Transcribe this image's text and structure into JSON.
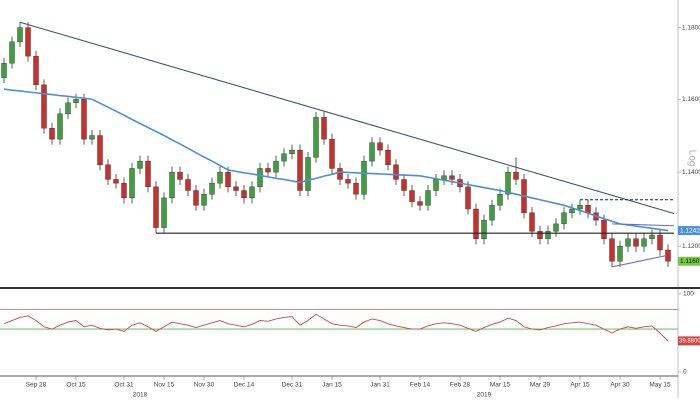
{
  "chart_data": {
    "type": "candlestick",
    "y_scale_label": "Log",
    "log_scale": true,
    "categories": [
      null,
      null,
      null,
      null,
      "Sep 28",
      null,
      null,
      null,
      null,
      "Oct 15",
      null,
      null,
      null,
      null,
      null,
      "Oct 31",
      null,
      null,
      null,
      null,
      "Nov 15",
      null,
      null,
      null,
      null,
      "Nov 30",
      null,
      null,
      null,
      null,
      "Dec 14",
      null,
      null,
      null,
      null,
      null,
      "Dec 31",
      null,
      null,
      null,
      null,
      "Jan 15",
      null,
      null,
      null,
      null,
      null,
      "Jan 31",
      null,
      null,
      null,
      null,
      "Feb 14",
      null,
      null,
      null,
      null,
      "Feb 28",
      null,
      null,
      null,
      null,
      "Mar 15",
      null,
      null,
      null,
      null,
      "Mar 29",
      null,
      null,
      null,
      null,
      "Apr 15",
      null,
      null,
      null,
      null,
      "Apr 30",
      null,
      null,
      null,
      null,
      "May 15",
      null
    ],
    "year_labels": [
      {
        "label": "2018",
        "at": 17
      },
      {
        "label": "2019",
        "at": 60
      }
    ],
    "ylim": [
      1.1089,
      1.1878
    ],
    "yticks": [
      {
        "value": 1.18,
        "label": "1.1800"
      },
      {
        "value": 1.16,
        "label": "1.1600"
      },
      {
        "value": 1.14,
        "label": "1.1400"
      },
      {
        "value": 1.12,
        "label": "1.1200"
      }
    ],
    "up_color": "#3f9e3f",
    "down_color": "#c9302c",
    "candles": {
      "open": [
        1.166,
        1.17,
        1.176,
        1.18,
        1.172,
        1.164,
        1.152,
        1.149,
        1.156,
        1.159,
        1.16,
        1.149,
        1.15,
        1.142,
        1.138,
        1.137,
        1.133,
        1.141,
        1.143,
        1.136,
        1.125,
        1.133,
        1.14,
        1.138,
        1.135,
        1.131,
        1.134,
        1.137,
        1.14,
        1.136,
        1.135,
        1.133,
        1.136,
        1.141,
        1.14,
        1.143,
        1.145,
        1.146,
        1.135,
        1.144,
        1.155,
        1.149,
        1.141,
        1.138,
        1.137,
        1.134,
        1.143,
        1.148,
        1.146,
        1.142,
        1.138,
        1.135,
        1.132,
        1.131,
        1.135,
        1.138,
        1.139,
        1.138,
        1.136,
        1.13,
        1.122,
        1.127,
        1.131,
        1.134,
        1.14,
        1.138,
        1.129,
        1.124,
        1.122,
        1.124,
        1.126,
        1.129,
        1.13,
        1.131,
        1.129,
        1.127,
        1.122,
        1.116,
        1.12,
        1.122,
        1.12,
        1.122,
        1.123,
        1.119
      ],
      "high": [
        1.1715,
        1.1775,
        1.1815,
        1.1815,
        1.1735,
        1.1655,
        1.1535,
        1.1575,
        1.1605,
        1.1615,
        1.1615,
        1.1515,
        1.1515,
        1.1435,
        1.1395,
        1.1385,
        1.1425,
        1.1445,
        1.1445,
        1.1375,
        1.1345,
        1.1415,
        1.1415,
        1.1395,
        1.1365,
        1.1355,
        1.1385,
        1.1415,
        1.1415,
        1.1375,
        1.1365,
        1.1375,
        1.1425,
        1.1425,
        1.1445,
        1.1465,
        1.1475,
        1.1475,
        1.1455,
        1.1565,
        1.1565,
        1.1505,
        1.1425,
        1.1395,
        1.1385,
        1.1445,
        1.1495,
        1.1495,
        1.1475,
        1.1435,
        1.1395,
        1.1365,
        1.1335,
        1.1365,
        1.1395,
        1.1405,
        1.1405,
        1.1395,
        1.1375,
        1.1315,
        1.1285,
        1.1325,
        1.1355,
        1.1415,
        1.144,
        1.1395,
        1.1305,
        1.1255,
        1.1255,
        1.1275,
        1.1305,
        1.1315,
        1.1325,
        1.1325,
        1.1305,
        1.1285,
        1.1235,
        1.1215,
        1.1235,
        1.1235,
        1.1235,
        1.1245,
        1.1245,
        1.1205
      ],
      "low": [
        1.1645,
        1.1685,
        1.1745,
        1.1705,
        1.1625,
        1.1505,
        1.1475,
        1.1475,
        1.1545,
        1.1575,
        1.1475,
        1.1475,
        1.1405,
        1.1365,
        1.1355,
        1.1315,
        1.1315,
        1.1395,
        1.1345,
        1.1235,
        1.1235,
        1.1315,
        1.1365,
        1.1335,
        1.1295,
        1.1295,
        1.1325,
        1.1355,
        1.1345,
        1.1335,
        1.1315,
        1.1315,
        1.1345,
        1.1385,
        1.1385,
        1.1415,
        1.1435,
        1.1335,
        1.1335,
        1.1425,
        1.1475,
        1.1395,
        1.1365,
        1.1355,
        1.1325,
        1.1325,
        1.1415,
        1.1445,
        1.1405,
        1.1365,
        1.1335,
        1.1305,
        1.1295,
        1.1295,
        1.1335,
        1.1365,
        1.1365,
        1.1345,
        1.1285,
        1.1205,
        1.1205,
        1.1255,
        1.1295,
        1.1325,
        1.1365,
        1.1275,
        1.1225,
        1.1205,
        1.1205,
        1.1225,
        1.1245,
        1.1275,
        1.1285,
        1.1275,
        1.1255,
        1.1205,
        1.1145,
        1.1145,
        1.1185,
        1.1185,
        1.1185,
        1.1205,
        1.1175,
        1.1145
      ],
      "close": [
        1.17,
        1.176,
        1.18,
        1.172,
        1.164,
        1.152,
        1.149,
        1.156,
        1.159,
        1.16,
        1.149,
        1.15,
        1.142,
        1.138,
        1.137,
        1.133,
        1.141,
        1.143,
        1.136,
        1.125,
        1.133,
        1.14,
        1.138,
        1.135,
        1.131,
        1.134,
        1.137,
        1.14,
        1.136,
        1.135,
        1.133,
        1.136,
        1.141,
        1.14,
        1.143,
        1.145,
        1.146,
        1.135,
        1.144,
        1.155,
        1.149,
        1.141,
        1.138,
        1.137,
        1.134,
        1.143,
        1.148,
        1.146,
        1.142,
        1.138,
        1.135,
        1.132,
        1.131,
        1.135,
        1.138,
        1.139,
        1.138,
        1.136,
        1.13,
        1.122,
        1.127,
        1.131,
        1.134,
        1.14,
        1.138,
        1.129,
        1.124,
        1.122,
        1.124,
        1.126,
        1.129,
        1.13,
        1.131,
        1.129,
        1.127,
        1.122,
        1.116,
        1.12,
        1.122,
        1.12,
        1.122,
        1.123,
        1.119,
        1.116
      ],
      "last_close_label": "1.1160",
      "label_color": "#7ac943"
    },
    "moving_average": {
      "color": "#4a90d9",
      "values": [
        1.1628,
        1.1625,
        1.1623,
        1.162,
        1.1618,
        1.1615,
        1.1613,
        1.161,
        1.1608,
        1.1605,
        1.1603,
        1.16,
        1.1589,
        1.1578,
        1.1567,
        1.1556,
        1.1544,
        1.1533,
        1.1522,
        1.1511,
        1.15,
        1.1488,
        1.1477,
        1.1465,
        1.1453,
        1.1441,
        1.143,
        1.1418,
        1.1406,
        1.1402,
        1.1398,
        1.1395,
        1.1391,
        1.1387,
        1.1383,
        1.138,
        1.1376,
        1.1372,
        1.1378,
        1.1383,
        1.1389,
        1.1394,
        1.14,
        1.1399,
        1.1398,
        1.1397,
        1.1396,
        1.1395,
        1.1394,
        1.1393,
        1.1392,
        1.1391,
        1.139,
        1.1386,
        1.1382,
        1.1378,
        1.1374,
        1.137,
        1.1366,
        1.1362,
        1.1358,
        1.1354,
        1.135,
        1.1345,
        1.134,
        1.1335,
        1.133,
        1.1325,
        1.132,
        1.1315,
        1.131,
        1.1303,
        1.1296,
        1.1289,
        1.1281,
        1.1274,
        1.1267,
        1.126,
        1.1257,
        1.1254,
        1.1251,
        1.1248,
        1.1245,
        1.1242
      ]
    },
    "trendlines": [
      {
        "from": [
          2,
          1.1815
        ],
        "to": [
          83,
          1.1288
        ],
        "color": "#3b5470",
        "dashed": false
      },
      {
        "from": [
          19,
          1.1235
        ],
        "to": [
          83,
          1.1235
        ],
        "color": "#222222",
        "dashed": false
      },
      {
        "from": [
          72,
          1.1325
        ],
        "to": [
          83,
          1.1325
        ],
        "color": "#222222",
        "dashed": true
      },
      {
        "from": [
          76,
          1.1145
        ],
        "to": [
          82,
          1.1175
        ],
        "color": "#6a6ad0",
        "dashed": false
      },
      {
        "from": [
          76,
          1.126
        ],
        "to": [
          83,
          1.1255
        ],
        "color": "#6a6ad0",
        "dashed": false
      }
    ],
    "oscillator": {
      "color": "#d04545",
      "ylim": [
        0,
        100
      ],
      "yticks": [
        100,
        0
      ],
      "levels": [
        {
          "value": 80,
          "color": "#e07070"
        },
        {
          "value": 55,
          "color": "#4cb84c"
        }
      ],
      "values": [
        62,
        66,
        70,
        72,
        66,
        58,
        55,
        60,
        64,
        66,
        58,
        60,
        56,
        54,
        55,
        52,
        60,
        63,
        58,
        52,
        58,
        64,
        62,
        60,
        57,
        60,
        63,
        66,
        62,
        60,
        58,
        61,
        66,
        65,
        68,
        70,
        71,
        60,
        66,
        74,
        68,
        62,
        60,
        59,
        57,
        64,
        68,
        66,
        62,
        59,
        57,
        55,
        55,
        59,
        62,
        63,
        62,
        60,
        56,
        52,
        57,
        61,
        64,
        69,
        66,
        58,
        55,
        54,
        57,
        59,
        62,
        63,
        64,
        62,
        60,
        55,
        50,
        55,
        58,
        56,
        58,
        59,
        50,
        39.88
      ],
      "last_value_label": "39.8800"
    }
  }
}
